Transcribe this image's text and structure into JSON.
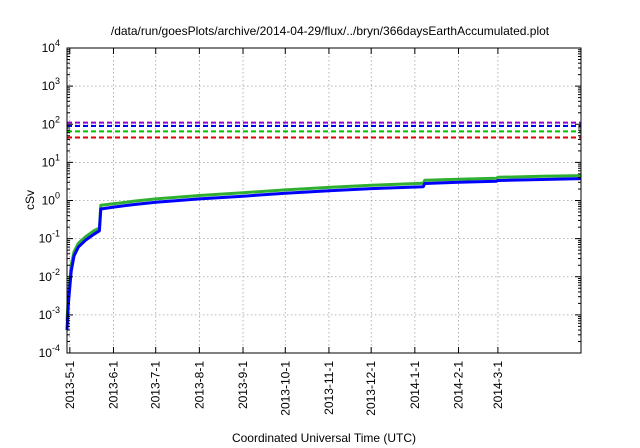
{
  "chart_data": {
    "type": "line",
    "title": "/data/run/goesPlots/archive/2014-04-29/flux/../bryn/366daysEarthAccumulated.plot",
    "xlabel": "Coordinated Universal Time (UTC)",
    "ylabel": "cSv",
    "yscale": "log",
    "ylim": [
      0.0001,
      10000
    ],
    "xlim": [
      "2013-04-29",
      "2014-04-29"
    ],
    "grid": true,
    "x_ticks": [
      "2013-5-1",
      "2013-6-1",
      "2013-7-1",
      "2013-8-1",
      "2013-9-1",
      "2013-10-1",
      "2013-11-1",
      "2013-12-1",
      "2014-1-1",
      "2014-2-1",
      "2014-3-1"
    ],
    "y_ticks": [
      {
        "value": 0.0001,
        "base": "10",
        "exp": "-4"
      },
      {
        "value": 0.001,
        "base": "10",
        "exp": "-3"
      },
      {
        "value": 0.01,
        "base": "10",
        "exp": "-2"
      },
      {
        "value": 0.1,
        "base": "10",
        "exp": "-1"
      },
      {
        "value": 1,
        "base": "10",
        "exp": "0"
      },
      {
        "value": 10,
        "base": "10",
        "exp": "1"
      },
      {
        "value": 100,
        "base": "10",
        "exp": "2"
      },
      {
        "value": 1000,
        "base": "10",
        "exp": "3"
      },
      {
        "value": 10000,
        "base": "10",
        "exp": "4"
      }
    ],
    "thresholds": [
      {
        "value": 110,
        "color": "#9400d3",
        "style": "dashed"
      },
      {
        "value": 90,
        "color": "#0000ff",
        "style": "dashed"
      },
      {
        "value": 65,
        "color": "#00c000",
        "style": "dashed"
      },
      {
        "value": 45,
        "color": "#e00000",
        "style": "dashed"
      }
    ],
    "series": [
      {
        "color": "#30b030",
        "width": 3,
        "x": [
          "2013-04-29",
          "2013-04-30",
          "2013-05-02",
          "2013-05-04",
          "2013-05-07",
          "2013-05-12",
          "2013-05-18",
          "2013-05-22",
          "2013-05-23",
          "2013-06-01",
          "2013-06-15",
          "2013-07-01",
          "2013-08-01",
          "2013-09-01",
          "2013-10-01",
          "2013-11-01",
          "2013-12-01",
          "2014-01-07",
          "2014-01-08",
          "2014-02-01",
          "2014-02-28",
          "2014-03-01",
          "2014-04-01",
          "2014-04-29"
        ],
        "y": [
          0.0007,
          0.003,
          0.02,
          0.045,
          0.075,
          0.11,
          0.16,
          0.19,
          0.75,
          0.82,
          0.95,
          1.1,
          1.35,
          1.6,
          1.9,
          2.2,
          2.5,
          2.85,
          3.4,
          3.6,
          3.85,
          4.05,
          4.3,
          4.5
        ]
      },
      {
        "color": "#0000ff",
        "width": 3,
        "x": [
          "2013-04-29",
          "2013-04-30",
          "2013-05-02",
          "2013-05-04",
          "2013-05-07",
          "2013-05-12",
          "2013-05-18",
          "2013-05-22",
          "2013-05-23",
          "2013-06-01",
          "2013-06-15",
          "2013-07-01",
          "2013-08-01",
          "2013-09-01",
          "2013-10-01",
          "2013-11-01",
          "2013-12-01",
          "2014-01-07",
          "2014-01-08",
          "2014-02-01",
          "2014-02-28",
          "2014-03-01",
          "2014-04-01",
          "2014-04-29"
        ],
        "y": [
          0.0004,
          0.002,
          0.014,
          0.035,
          0.06,
          0.09,
          0.13,
          0.16,
          0.6,
          0.67,
          0.78,
          0.9,
          1.1,
          1.3,
          1.55,
          1.8,
          2.05,
          2.3,
          2.8,
          3.0,
          3.2,
          3.35,
          3.55,
          3.75
        ]
      }
    ]
  }
}
